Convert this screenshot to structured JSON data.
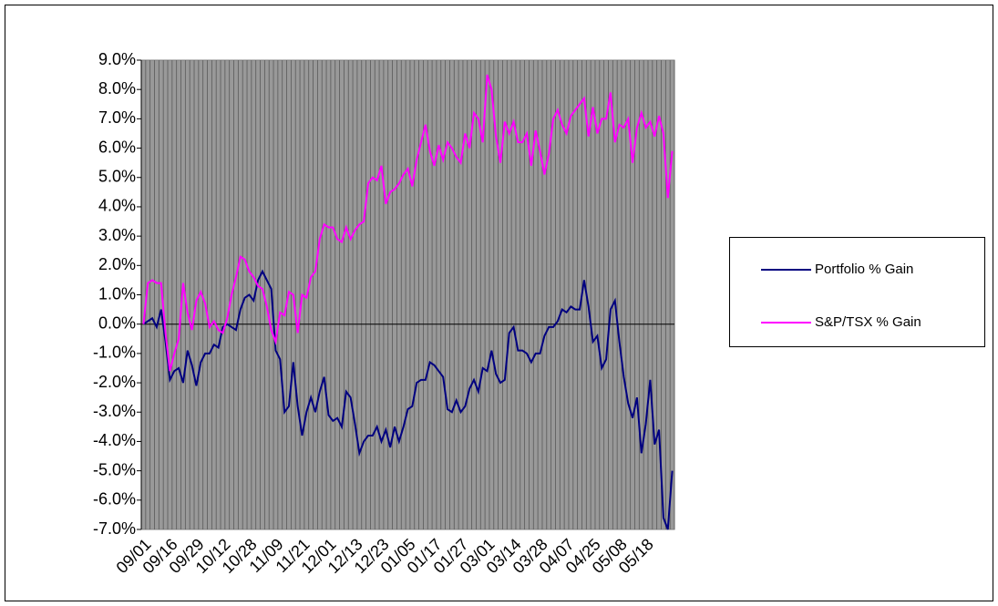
{
  "chart_data": {
    "type": "line",
    "categories": [
      "09/01",
      null,
      null,
      null,
      null,
      null,
      "09/16",
      null,
      null,
      null,
      null,
      null,
      "09/29",
      null,
      null,
      null,
      null,
      null,
      "10/12",
      null,
      null,
      null,
      null,
      null,
      "10/28",
      null,
      null,
      null,
      null,
      null,
      "11/09",
      null,
      null,
      null,
      null,
      null,
      "11/21",
      null,
      null,
      null,
      null,
      null,
      "12/01",
      null,
      null,
      null,
      null,
      null,
      "12/13",
      null,
      null,
      null,
      null,
      null,
      "12/23",
      null,
      null,
      null,
      null,
      null,
      "01/05",
      null,
      null,
      null,
      null,
      null,
      "01/17",
      null,
      null,
      null,
      null,
      null,
      "01/27",
      null,
      null,
      null,
      null,
      null,
      "03/01",
      null,
      null,
      null,
      null,
      null,
      "03/14",
      null,
      null,
      null,
      null,
      null,
      "03/28",
      null,
      null,
      null,
      null,
      null,
      "04/07",
      null,
      null,
      null,
      null,
      null,
      "04/25",
      null,
      null,
      null,
      null,
      null,
      "05/08",
      null,
      null,
      null,
      null,
      null,
      "05/18",
      null,
      null,
      null,
      null,
      null,
      null
    ],
    "series": [
      {
        "name": "Portfolio % Gain",
        "color": "#000080",
        "values": [
          0.0,
          0.1,
          0.2,
          -0.1,
          0.5,
          -0.6,
          -1.9,
          -1.6,
          -1.5,
          -2.0,
          -0.9,
          -1.4,
          -2.1,
          -1.3,
          -1.0,
          -1.0,
          -0.7,
          -0.8,
          -0.1,
          0.0,
          -0.1,
          -0.2,
          0.5,
          0.9,
          1.0,
          0.8,
          1.5,
          1.8,
          1.5,
          1.2,
          -0.9,
          -1.2,
          -3.0,
          -2.8,
          -1.3,
          -2.8,
          -3.8,
          -3.0,
          -2.5,
          -3.0,
          -2.3,
          -1.8,
          -3.1,
          -3.3,
          -3.2,
          -3.5,
          -2.3,
          -2.5,
          -3.4,
          -4.4,
          -4.0,
          -3.8,
          -3.8,
          -3.5,
          -4.0,
          -3.6,
          -4.2,
          -3.5,
          -4.0,
          -3.5,
          -2.9,
          -2.8,
          -2.0,
          -1.9,
          -1.9,
          -1.3,
          -1.4,
          -1.6,
          -1.8,
          -2.9,
          -3.0,
          -2.6,
          -3.0,
          -2.8,
          -2.2,
          -1.9,
          -2.3,
          -1.5,
          -1.6,
          -0.9,
          -1.7,
          -2.0,
          -1.9,
          -0.3,
          -0.1,
          -0.9,
          -0.9,
          -1.0,
          -1.3,
          -1.0,
          -1.0,
          -0.4,
          -0.1,
          -0.1,
          0.1,
          0.5,
          0.4,
          0.6,
          0.5,
          0.5,
          1.5,
          0.6,
          -0.6,
          -0.4,
          -1.5,
          -1.2,
          0.5,
          0.8,
          -0.6,
          -1.8,
          -2.7,
          -3.2,
          -2.5,
          -4.4,
          -3.4,
          -1.9,
          -4.1,
          -3.6,
          -6.6,
          -7.0,
          -5.0
        ]
      },
      {
        "name": "S&P/TSX % Gain",
        "color": "#ff00ff",
        "values": [
          0.0,
          1.4,
          1.5,
          1.4,
          1.4,
          -0.3,
          -1.6,
          -1.0,
          -0.5,
          1.4,
          0.4,
          -0.2,
          0.8,
          1.1,
          0.7,
          -0.1,
          0.1,
          -0.2,
          -0.3,
          0.2,
          1.0,
          1.6,
          2.3,
          2.2,
          1.8,
          1.6,
          1.3,
          1.2,
          0.6,
          -0.2,
          -0.6,
          0.4,
          0.3,
          1.1,
          1.0,
          -0.3,
          1.0,
          0.9,
          1.6,
          1.8,
          2.9,
          3.4,
          3.3,
          3.3,
          2.9,
          2.8,
          3.3,
          2.9,
          3.2,
          3.4,
          3.5,
          4.8,
          5.0,
          4.9,
          5.4,
          4.1,
          4.5,
          4.6,
          4.8,
          5.1,
          5.3,
          4.7,
          5.6,
          6.2,
          6.8,
          5.9,
          5.4,
          6.1,
          5.6,
          6.2,
          6.0,
          5.7,
          5.5,
          6.5,
          6.0,
          7.2,
          7.0,
          6.2,
          8.5,
          8.0,
          6.4,
          5.5,
          6.9,
          6.5,
          6.9,
          6.2,
          6.2,
          6.5,
          5.4,
          6.6,
          5.9,
          5.1,
          5.8,
          7.0,
          7.3,
          6.8,
          6.5,
          7.1,
          7.3,
          7.5,
          7.7,
          6.4,
          7.4,
          6.5,
          7.0,
          7.0,
          7.9,
          6.2,
          6.8,
          6.7,
          7.0,
          5.5,
          6.7,
          7.2,
          6.7,
          6.9,
          6.4,
          7.1,
          6.5,
          4.3,
          5.9
        ]
      }
    ],
    "ylim": [
      -7,
      9
    ],
    "yticks": [
      {
        "value": -7,
        "label": "-7.0%"
      },
      {
        "value": -6,
        "label": "-6.0%"
      },
      {
        "value": -5,
        "label": "-5.0%"
      },
      {
        "value": -4,
        "label": "-4.0%"
      },
      {
        "value": -3,
        "label": "-3.0%"
      },
      {
        "value": -2,
        "label": "-2.0%"
      },
      {
        "value": -1,
        "label": "-1.0%"
      },
      {
        "value": 0,
        "label": "0.0%"
      },
      {
        "value": 1,
        "label": "1.0%"
      },
      {
        "value": 2,
        "label": "2.0%"
      },
      {
        "value": 3,
        "label": "3.0%"
      },
      {
        "value": 4,
        "label": "4.0%"
      },
      {
        "value": 5,
        "label": "5.0%"
      },
      {
        "value": 6,
        "label": "6.0%"
      },
      {
        "value": 7,
        "label": "7.0%"
      },
      {
        "value": 8,
        "label": "8.0%"
      },
      {
        "value": 9,
        "label": "9.0%"
      }
    ],
    "legend": "right"
  }
}
